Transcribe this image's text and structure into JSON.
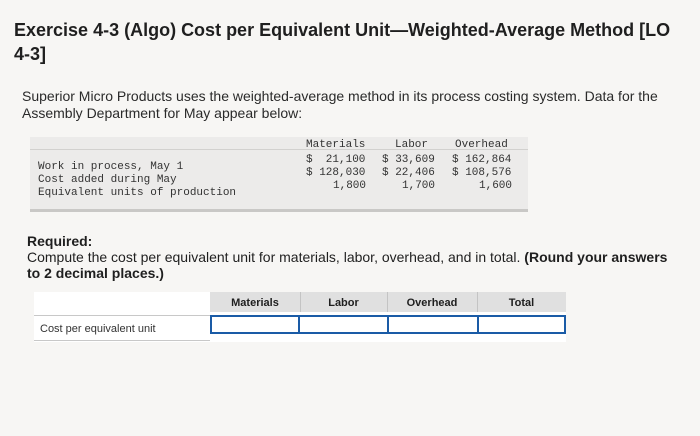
{
  "title": "Exercise 4-3 (Algo) Cost per Equivalent Unit—Weighted-Average Method [LO 4-3]",
  "intro": "Superior Micro Products uses the weighted-average method in its process costing system. Data for the Assembly Department for May appear below:",
  "data_table": {
    "headers": [
      "Materials",
      "Labor",
      "Overhead"
    ],
    "rows": [
      {
        "label": "Work in process, May 1",
        "values": [
          "$  21,100",
          "$ 33,609",
          "$ 162,864"
        ]
      },
      {
        "label": "Cost added during May",
        "values": [
          "$ 128,030",
          "$ 22,406",
          "$ 108,576"
        ]
      },
      {
        "label": "Equivalent units of production",
        "values": [
          "1,800",
          "1,700",
          "1,600"
        ]
      }
    ]
  },
  "required_label": "Required:",
  "instruction_text": "Compute the cost per equivalent unit for materials, labor, overhead, and in total.",
  "instruction_bold": "(Round your answers to 2 decimal places.)",
  "answer_table": {
    "headers": [
      "Materials",
      "Labor",
      "Overhead",
      "Total"
    ],
    "row_label": "Cost per equivalent unit",
    "values": [
      "",
      "",
      "",
      ""
    ]
  }
}
